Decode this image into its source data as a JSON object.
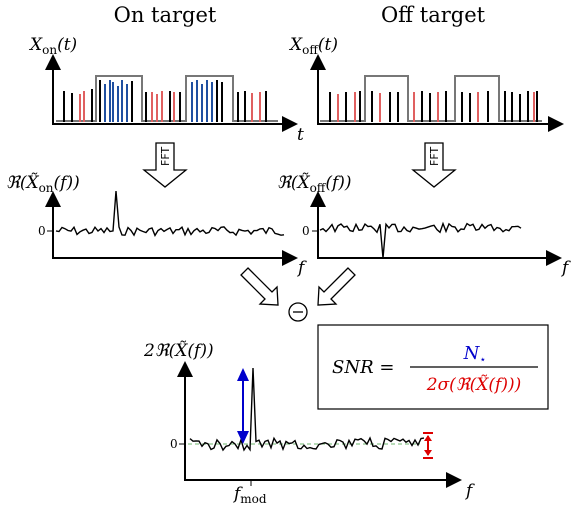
{
  "titles": {
    "on": "On target",
    "off": "Off target"
  },
  "time_panels": {
    "on_label": "X_on(t)",
    "off_label": "X_off(t)",
    "t_label": "t"
  },
  "fft_label": "FFT",
  "freq_panels": {
    "on_label": "ℜ(X̃_on(f))",
    "off_label": "ℜ(X̃_off(f))",
    "f_label": "f",
    "zero_tick": "0"
  },
  "minus_symbol": "−",
  "result": {
    "y_label": "2ℜ(X̃(f))",
    "x_label": "f",
    "fmod_label": "f_mod",
    "zero_tick": "0"
  },
  "snr": {
    "lhs": "SNR =",
    "numerator": "N⋆",
    "denominator": "2σ(ℜ(X̃(f)))"
  },
  "colors": {
    "axis": "#000000",
    "signal_on": "#1f4fa0",
    "background_event": "#e06060",
    "modulation": "#666666",
    "arrow_blue": "#0000cc",
    "arrow_red": "#dd0000",
    "baseline_green": "#339933"
  }
}
